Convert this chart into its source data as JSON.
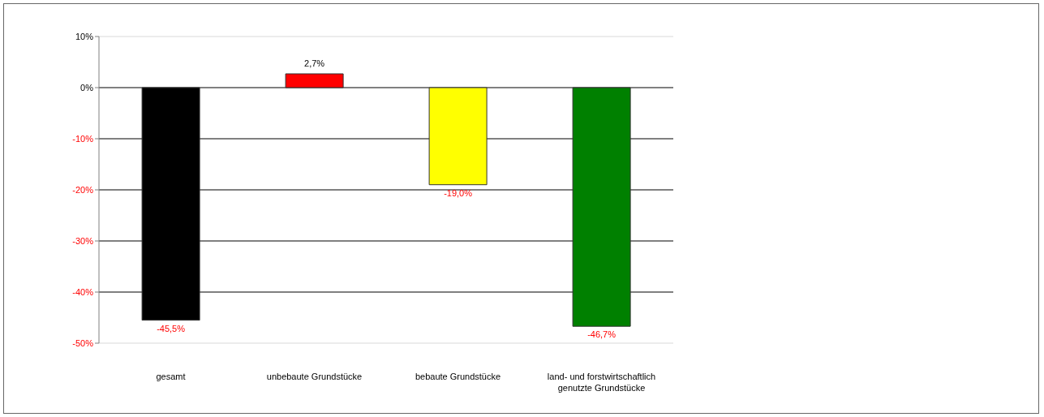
{
  "chart_data": {
    "type": "bar",
    "categories": [
      "gesamt",
      "unbebaute Grundstücke",
      "bebaute Grundstücke",
      "land- und forstwirtschaftlich genutzte Grundstücke"
    ],
    "values": [
      -45.5,
      2.7,
      -19.0,
      -46.7
    ],
    "colors": [
      "#000000",
      "#ff0000",
      "#ffff00",
      "#008000"
    ],
    "value_labels": [
      "-45,5%",
      "2,7%",
      "-19,0%",
      "-46,7%"
    ],
    "ylim": [
      -50,
      10
    ],
    "yticks": [
      {
        "value": 10,
        "label": "10%"
      },
      {
        "value": 0,
        "label": "0%"
      },
      {
        "value": -10,
        "label": "-10%"
      },
      {
        "value": -20,
        "label": "-20%"
      },
      {
        "value": -30,
        "label": "-30%"
      },
      {
        "value": -40,
        "label": "-40%"
      },
      {
        "value": -50,
        "label": "-50%"
      }
    ],
    "grid": "y"
  }
}
